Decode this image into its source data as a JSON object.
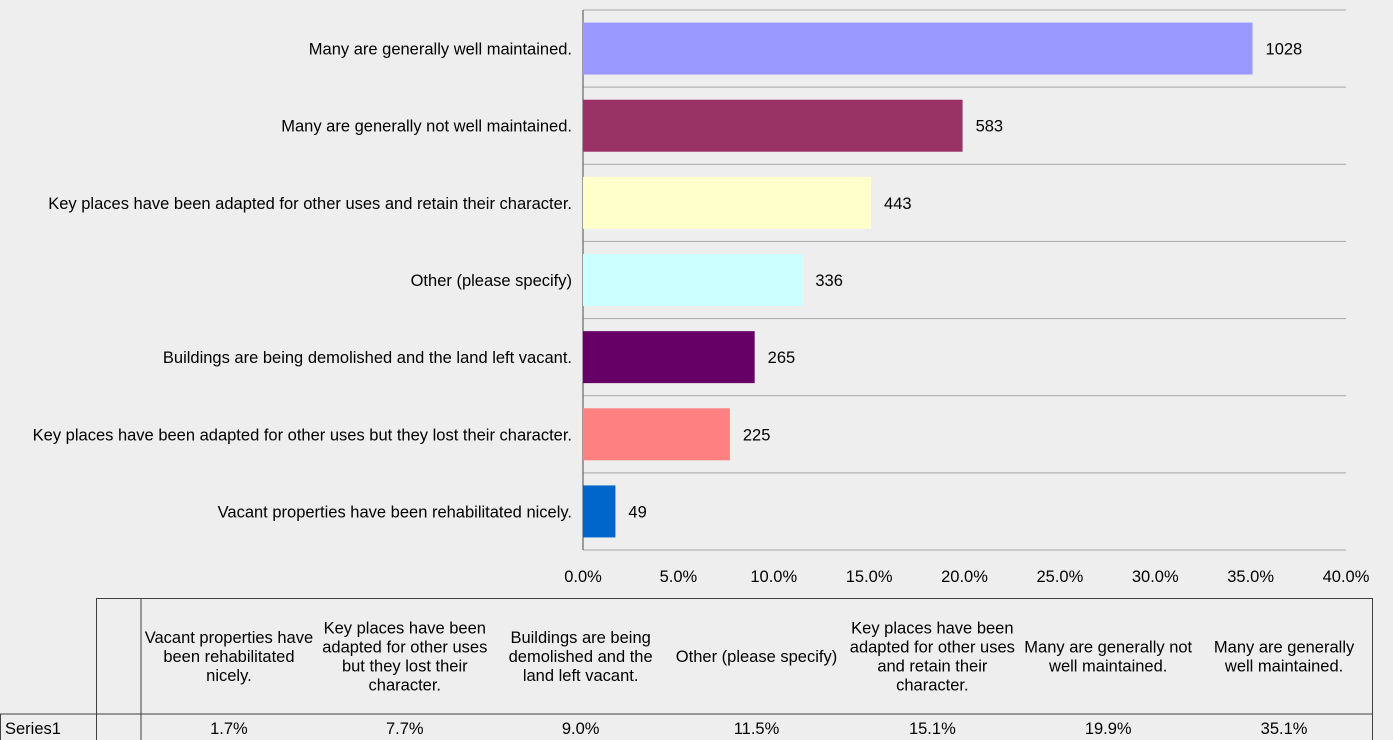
{
  "chart_data": {
    "type": "bar",
    "orientation": "horizontal",
    "categories": [
      "Many are generally well maintained.",
      "Many are generally not well maintained.",
      "Key places have been adapted for other uses and retain their character.",
      "Other (please specify)",
      "Buildings are being demolished and the land left vacant.",
      "Key places have been adapted for other uses but they lost their character.",
      "Vacant properties have been rehabilitated nicely."
    ],
    "values": [
      1028,
      583,
      443,
      336,
      265,
      225,
      49
    ],
    "percent_values": [
      35.1,
      19.9,
      15.1,
      11.5,
      9.0,
      7.7,
      1.7
    ],
    "colors": [
      "#9999ff",
      "#993366",
      "#ffffcc",
      "#ccffff",
      "#660066",
      "#ff8080",
      "#0066cc"
    ],
    "xlim": [
      0,
      40
    ],
    "x_ticks": [
      "0.0%",
      "5.0%",
      "10.0%",
      "15.0%",
      "20.0%",
      "25.0%",
      "30.0%",
      "35.0%",
      "40.0%"
    ],
    "grid": true,
    "data_table": {
      "series_name": "Series1",
      "columns": [
        "Vacant properties have been rehabilitated nicely.",
        "Key places have been adapted for other uses but they lost their character.",
        "Buildings are being demolished and the land left vacant.",
        "Other (please specify)",
        "Key places have been adapted for other uses and retain their character.",
        "Many are generally not well maintained.",
        "Many are generally well maintained."
      ],
      "values": [
        "1.7%",
        "7.7%",
        "9.0%",
        "11.5%",
        "15.1%",
        "19.9%",
        "35.1%"
      ]
    }
  }
}
